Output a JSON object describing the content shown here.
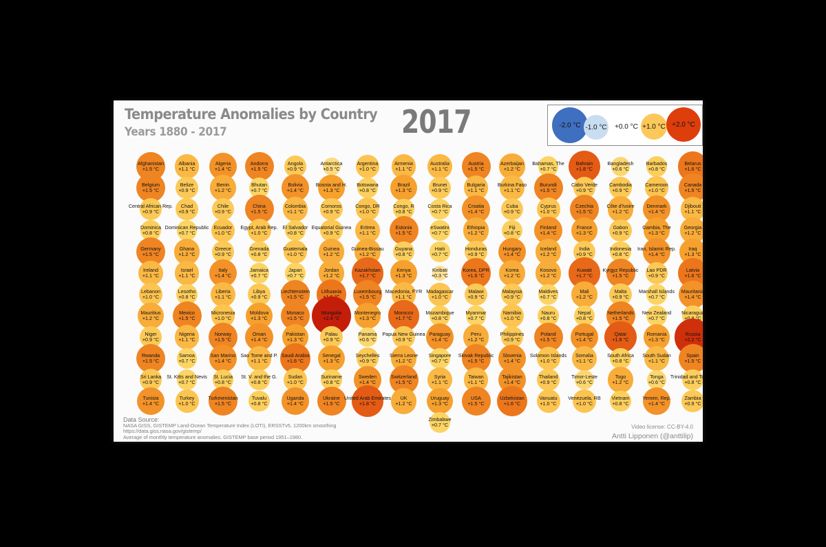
{
  "title": "Temperature Anomalies by Country",
  "subtitle": "Years 1880 - 2017",
  "year": "2017",
  "legend": [
    {
      "label": "-2.0 °C",
      "value": -2.0
    },
    {
      "label": "-1.0 °C",
      "value": -1.0
    },
    {
      "label": "+0.0 °C",
      "value": 0.0
    },
    {
      "label": "+1.0 °C",
      "value": 1.0
    },
    {
      "label": "+2.0 °C",
      "value": 2.0
    }
  ],
  "source": {
    "heading": "Data Source:",
    "line1": "NASA GISS, GISTEMP Land-Ocean Temperature Index (LOTI), ERSSTv5, 1200km smoothing",
    "line2": "https://data.giss.nasa.gov/gistemp/",
    "line3": "Average of monthly temperature anomalies. GISTEMP base period 1951–1980."
  },
  "license": "Video license: CC-BY-4.0",
  "author": "Antti Lipponen (@anttilip)",
  "chart_data": {
    "type": "bubble-grid",
    "title": "Temperature Anomalies by Country",
    "year": 2017,
    "unit": "°C",
    "columns": 16,
    "countries": [
      {
        "name": "Afghanistan",
        "value": 1.5,
        "label": "+1.5 °C"
      },
      {
        "name": "Albania",
        "value": 1.1,
        "label": "+1.1 °C"
      },
      {
        "name": "Algeria",
        "value": 1.4,
        "label": "+1.4 °C"
      },
      {
        "name": "Andorra",
        "value": 1.5,
        "label": "+1.5 °C"
      },
      {
        "name": "Angola",
        "value": 0.9,
        "label": "+0.9 °C"
      },
      {
        "name": "Antarctica",
        "value": 0.5,
        "label": "+0.5 °C"
      },
      {
        "name": "Argentina",
        "value": 1.0,
        "label": "+1.0 °C"
      },
      {
        "name": "Armenia",
        "value": 1.1,
        "label": "+1.1 °C"
      },
      {
        "name": "Australia",
        "value": 1.1,
        "label": "+1.1 °C"
      },
      {
        "name": "Austria",
        "value": 1.5,
        "label": "+1.5 °C"
      },
      {
        "name": "Azerbaijan",
        "value": 1.2,
        "label": "+1.2 °C"
      },
      {
        "name": "Bahamas, The",
        "value": 0.7,
        "label": "+0.7 °C"
      },
      {
        "name": "Bahrain",
        "value": 1.8,
        "label": "+1.8 °C"
      },
      {
        "name": "Bangladesh",
        "value": 0.6,
        "label": "+0.6 °C"
      },
      {
        "name": "Barbados",
        "value": 0.8,
        "label": "+0.8 °C"
      },
      {
        "name": "Belarus",
        "value": 1.6,
        "label": "+1.6 °C"
      },
      {
        "name": "Belgium",
        "value": 1.5,
        "label": "+1.5 °C"
      },
      {
        "name": "Belize",
        "value": 0.9,
        "label": "+0.9 °C"
      },
      {
        "name": "Benin",
        "value": 1.2,
        "label": "+1.2 °C"
      },
      {
        "name": "Bhutan",
        "value": 0.7,
        "label": "+0.7 °C"
      },
      {
        "name": "Bolivia",
        "value": 1.4,
        "label": "+1.4 °C"
      },
      {
        "name": "Bosnia and H.",
        "value": 1.3,
        "label": "+1.3 °C"
      },
      {
        "name": "Botswana",
        "value": 0.8,
        "label": "+0.8 °C"
      },
      {
        "name": "Brazil",
        "value": 1.3,
        "label": "+1.3 °C"
      },
      {
        "name": "Brunei",
        "value": 0.9,
        "label": "+0.9 °C"
      },
      {
        "name": "Bulgaria",
        "value": 1.1,
        "label": "+1.1 °C"
      },
      {
        "name": "Burkina Faso",
        "value": 1.1,
        "label": "+1.1 °C"
      },
      {
        "name": "Burundi",
        "value": 1.5,
        "label": "+1.5 °C"
      },
      {
        "name": "Cabo Verde",
        "value": 0.9,
        "label": "+0.9 °C"
      },
      {
        "name": "Cambodia",
        "value": 0.9,
        "label": "+0.9 °C"
      },
      {
        "name": "Cameroon",
        "value": 1.0,
        "label": "+1.0 °C"
      },
      {
        "name": "Canada",
        "value": 1.5,
        "label": "+1.5 °C"
      },
      {
        "name": "Central African Rep.",
        "value": 0.9,
        "label": "+0.9 °C"
      },
      {
        "name": "Chad",
        "value": 0.9,
        "label": "+0.9 °C"
      },
      {
        "name": "Chile",
        "value": 0.9,
        "label": "+0.9 °C"
      },
      {
        "name": "China",
        "value": 1.5,
        "label": "+1.5 °C"
      },
      {
        "name": "Colombia",
        "value": 1.1,
        "label": "+1.1 °C"
      },
      {
        "name": "Comoros",
        "value": 0.9,
        "label": "+0.9 °C"
      },
      {
        "name": "Congo, DR",
        "value": 1.0,
        "label": "+1.0 °C"
      },
      {
        "name": "Congo, R",
        "value": 0.8,
        "label": "+0.8 °C"
      },
      {
        "name": "Costa Rica",
        "value": 0.7,
        "label": "+0.7 °C"
      },
      {
        "name": "Croatia",
        "value": 1.4,
        "label": "+1.4 °C"
      },
      {
        "name": "Cuba",
        "value": 0.9,
        "label": "+0.9 °C"
      },
      {
        "name": "Cyprus",
        "value": 1.0,
        "label": "+1.0 °C"
      },
      {
        "name": "Czechia",
        "value": 1.5,
        "label": "+1.5 °C"
      },
      {
        "name": "Côte d'Ivoire",
        "value": 1.2,
        "label": "+1.2 °C"
      },
      {
        "name": "Denmark",
        "value": 1.4,
        "label": "+1.4 °C"
      },
      {
        "name": "Djibouti",
        "value": 1.1,
        "label": "+1.1 °C"
      },
      {
        "name": "Dominica",
        "value": 0.8,
        "label": "+0.8 °C"
      },
      {
        "name": "Dominican Republic",
        "value": 0.7,
        "label": "+0.7 °C"
      },
      {
        "name": "Ecuador",
        "value": 1.0,
        "label": "+1.0 °C"
      },
      {
        "name": "Egypt, Arab Rep.",
        "value": 1.0,
        "label": "+1.0 °C"
      },
      {
        "name": "El Salvador",
        "value": 0.8,
        "label": "+0.8 °C"
      },
      {
        "name": "Equatorial Guinea",
        "value": 0.9,
        "label": "+0.9 °C"
      },
      {
        "name": "Eritrea",
        "value": 1.1,
        "label": "+1.1 °C"
      },
      {
        "name": "Estonia",
        "value": 1.5,
        "label": "+1.5 °C"
      },
      {
        "name": "eSwatini",
        "value": 0.7,
        "label": "+0.7 °C"
      },
      {
        "name": "Ethiopia",
        "value": 1.2,
        "label": "+1.2 °C"
      },
      {
        "name": "Fiji",
        "value": 0.8,
        "label": "+0.8 °C"
      },
      {
        "name": "Finland",
        "value": 1.4,
        "label": "+1.4 °C"
      },
      {
        "name": "France",
        "value": 1.3,
        "label": "+1.3 °C"
      },
      {
        "name": "Gabon",
        "value": 0.9,
        "label": "+0.9 °C"
      },
      {
        "name": "Gambia, The",
        "value": 1.3,
        "label": "+1.3 °C"
      },
      {
        "name": "Georgia",
        "value": 1.2,
        "label": "+1.2 °C"
      },
      {
        "name": "Germany",
        "value": 1.5,
        "label": "+1.5 °C"
      },
      {
        "name": "Ghana",
        "value": 1.2,
        "label": "+1.2 °C"
      },
      {
        "name": "Greece",
        "value": 0.9,
        "label": "+0.9 °C"
      },
      {
        "name": "Grenada",
        "value": 0.8,
        "label": "+0.8 °C"
      },
      {
        "name": "Guatemala",
        "value": 1.0,
        "label": "+1.0 °C"
      },
      {
        "name": "Guinea",
        "value": 1.2,
        "label": "+1.2 °C"
      },
      {
        "name": "Guinea-Bissau",
        "value": 1.2,
        "label": "+1.2 °C"
      },
      {
        "name": "Guyana",
        "value": 0.8,
        "label": "+0.8 °C"
      },
      {
        "name": "Haiti",
        "value": 0.7,
        "label": "+0.7 °C"
      },
      {
        "name": "Honduras",
        "value": 0.9,
        "label": "+0.9 °C"
      },
      {
        "name": "Hungary",
        "value": 1.4,
        "label": "+1.4 °C"
      },
      {
        "name": "Iceland",
        "value": 1.2,
        "label": "+1.2 °C"
      },
      {
        "name": "India",
        "value": 0.9,
        "label": "+0.9 °C"
      },
      {
        "name": "Indonesia",
        "value": 0.8,
        "label": "+0.8 °C"
      },
      {
        "name": "Iran, Islamic Rep.",
        "value": 1.4,
        "label": "+1.4 °C"
      },
      {
        "name": "Iraq",
        "value": 1.3,
        "label": "+1.3 °C"
      },
      {
        "name": "Ireland",
        "value": 1.1,
        "label": "+1.1 °C"
      },
      {
        "name": "Israel",
        "value": 1.1,
        "label": "+1.1 °C"
      },
      {
        "name": "Italy",
        "value": 1.4,
        "label": "+1.4 °C"
      },
      {
        "name": "Jamaica",
        "value": 0.7,
        "label": "+0.7 °C"
      },
      {
        "name": "Japan",
        "value": 0.7,
        "label": "+0.7 °C"
      },
      {
        "name": "Jordan",
        "value": 1.2,
        "label": "+1.2 °C"
      },
      {
        "name": "Kazakhstan",
        "value": 1.7,
        "label": "+1.7 °C"
      },
      {
        "name": "Kenya",
        "value": 1.3,
        "label": "+1.3 °C"
      },
      {
        "name": "Kiribati",
        "value": 0.3,
        "label": "+0.3 °C"
      },
      {
        "name": "Korea, DPR",
        "value": 1.6,
        "label": "+1.6 °C"
      },
      {
        "name": "Korea",
        "value": 1.2,
        "label": "+1.2 °C"
      },
      {
        "name": "Kosovo",
        "value": 1.2,
        "label": "+1.2 °C"
      },
      {
        "name": "Kuwait",
        "value": 1.7,
        "label": "+1.7 °C"
      },
      {
        "name": "Kyrgyz Republic",
        "value": 1.5,
        "label": "+1.5 °C"
      },
      {
        "name": "Lao PDR",
        "value": 0.9,
        "label": "+0.9 °C"
      },
      {
        "name": "Latvia",
        "value": 1.6,
        "label": "+1.6 °C"
      },
      {
        "name": "Lebanon",
        "value": 1.0,
        "label": "+1.0 °C"
      },
      {
        "name": "Lesotho",
        "value": 0.8,
        "label": "+0.8 °C"
      },
      {
        "name": "Liberia",
        "value": 1.1,
        "label": "+1.1 °C"
      },
      {
        "name": "Libya",
        "value": 0.9,
        "label": "+0.9 °C"
      },
      {
        "name": "Liechtenstein",
        "value": 1.5,
        "label": "+1.5 °C"
      },
      {
        "name": "Lithuania",
        "value": 1.6,
        "label": "+1.6 °C"
      },
      {
        "name": "Luxembourg",
        "value": 1.5,
        "label": "+1.5 °C"
      },
      {
        "name": "Macedonia, FYR",
        "value": 1.1,
        "label": "+1.1 °C"
      },
      {
        "name": "Madagascar",
        "value": 1.0,
        "label": "+1.0 °C"
      },
      {
        "name": "Malawi",
        "value": 0.9,
        "label": "+0.9 °C"
      },
      {
        "name": "Malaysia",
        "value": 0.9,
        "label": "+0.9 °C"
      },
      {
        "name": "Maldives",
        "value": 0.7,
        "label": "+0.7 °C"
      },
      {
        "name": "Mali",
        "value": 1.2,
        "label": "+1.2 °C"
      },
      {
        "name": "Malta",
        "value": 0.9,
        "label": "+0.9 °C"
      },
      {
        "name": "Marshall Islands",
        "value": 0.7,
        "label": "+0.7 °C"
      },
      {
        "name": "Mauritania",
        "value": 1.4,
        "label": "+1.4 °C"
      },
      {
        "name": "Mauritius",
        "value": 1.2,
        "label": "+1.2 °C"
      },
      {
        "name": "Mexico",
        "value": 1.5,
        "label": "+1.5 °C"
      },
      {
        "name": "Micronesia",
        "value": 1.0,
        "label": "+1.0 °C"
      },
      {
        "name": "Moldova",
        "value": 1.3,
        "label": "+1.3 °C"
      },
      {
        "name": "Monaco",
        "value": 1.5,
        "label": "+1.5 °C"
      },
      {
        "name": "Mongolia",
        "value": 2.4,
        "label": "+2.4 °C"
      },
      {
        "name": "Montenegro",
        "value": 1.3,
        "label": "+1.3 °C"
      },
      {
        "name": "Morocco",
        "value": 1.7,
        "label": "+1.7 °C"
      },
      {
        "name": "Mozambique",
        "value": 0.8,
        "label": "+0.8 °C"
      },
      {
        "name": "Myanmar",
        "value": 0.7,
        "label": "+0.7 °C"
      },
      {
        "name": "Namibia",
        "value": 1.0,
        "label": "+1.0 °C"
      },
      {
        "name": "Nauru",
        "value": 0.8,
        "label": "+0.8 °C"
      },
      {
        "name": "Nepal",
        "value": 0.8,
        "label": "+0.8 °C"
      },
      {
        "name": "Netherlands",
        "value": 1.5,
        "label": "+1.5 °C"
      },
      {
        "name": "New Zealand",
        "value": 0.7,
        "label": "+0.7 °C"
      },
      {
        "name": "Nicaragua",
        "value": 0.8,
        "label": "+0.8 °C"
      },
      {
        "name": "Niger",
        "value": 0.9,
        "label": "+0.9 °C"
      },
      {
        "name": "Nigeria",
        "value": 1.1,
        "label": "+1.1 °C"
      },
      {
        "name": "Norway",
        "value": 1.5,
        "label": "+1.5 °C"
      },
      {
        "name": "Oman",
        "value": 1.4,
        "label": "+1.4 °C"
      },
      {
        "name": "Pakistan",
        "value": 1.3,
        "label": "+1.3 °C"
      },
      {
        "name": "Palau",
        "value": 0.9,
        "label": "+0.9 °C"
      },
      {
        "name": "Panama",
        "value": 0.6,
        "label": "+0.6 °C"
      },
      {
        "name": "Papua New Guinea",
        "value": 0.9,
        "label": "+0.9 °C"
      },
      {
        "name": "Paraguay",
        "value": 1.4,
        "label": "+1.4 °C"
      },
      {
        "name": "Peru",
        "value": 1.2,
        "label": "+1.2 °C"
      },
      {
        "name": "Philippines",
        "value": 0.9,
        "label": "+0.9 °C"
      },
      {
        "name": "Poland",
        "value": 1.5,
        "label": "+1.5 °C"
      },
      {
        "name": "Portugal",
        "value": 1.4,
        "label": "+1.4 °C"
      },
      {
        "name": "Qatar",
        "value": 1.8,
        "label": "+1.8 °C"
      },
      {
        "name": "Romania",
        "value": 1.3,
        "label": "+1.3 °C"
      },
      {
        "name": "Russia",
        "value": 2.2,
        "label": "+2.2 °C"
      },
      {
        "name": "Rwanda",
        "value": 1.5,
        "label": "+1.5 °C"
      },
      {
        "name": "Samoa",
        "value": 0.7,
        "label": "+0.7 °C"
      },
      {
        "name": "San Marino",
        "value": 1.4,
        "label": "+1.4 °C"
      },
      {
        "name": "Sao Tome and P.",
        "value": 1.1,
        "label": "+1.1 °C"
      },
      {
        "name": "Saudi Arabia",
        "value": 1.6,
        "label": "+1.6 °C"
      },
      {
        "name": "Senegal",
        "value": 1.3,
        "label": "+1.3 °C"
      },
      {
        "name": "Seychelles",
        "value": 0.9,
        "label": "+0.9 °C"
      },
      {
        "name": "Sierra Leone",
        "value": 1.2,
        "label": "+1.2 °C"
      },
      {
        "name": "Singapore",
        "value": 0.7,
        "label": "+0.7 °C"
      },
      {
        "name": "Slovak Republic",
        "value": 1.5,
        "label": "+1.5 °C"
      },
      {
        "name": "Slovenia",
        "value": 1.4,
        "label": "+1.4 °C"
      },
      {
        "name": "Solomon Islands",
        "value": 1.0,
        "label": "+1.0 °C"
      },
      {
        "name": "Somalia",
        "value": 1.1,
        "label": "+1.1 °C"
      },
      {
        "name": "South Africa",
        "value": 0.8,
        "label": "+0.8 °C"
      },
      {
        "name": "South Sudan",
        "value": 1.1,
        "label": "+1.1 °C"
      },
      {
        "name": "Spain",
        "value": 1.5,
        "label": "+1.5 °C"
      },
      {
        "name": "Sri Lanka",
        "value": 0.9,
        "label": "+0.9 °C"
      },
      {
        "name": "St. Kitts and Nevis",
        "value": 0.7,
        "label": "+0.7 °C"
      },
      {
        "name": "St. Lucia",
        "value": 0.8,
        "label": "+0.8 °C"
      },
      {
        "name": "St. V. and the G.",
        "value": 0.8,
        "label": "+0.8 °C"
      },
      {
        "name": "Sudan",
        "value": 1.0,
        "label": "+1.0 °C"
      },
      {
        "name": "Suriname",
        "value": 0.8,
        "label": "+0.8 °C"
      },
      {
        "name": "Sweden",
        "value": 1.4,
        "label": "+1.4 °C"
      },
      {
        "name": "Switzerland",
        "value": 1.5,
        "label": "+1.5 °C"
      },
      {
        "name": "Syria",
        "value": 1.1,
        "label": "+1.1 °C"
      },
      {
        "name": "Taiwan",
        "value": 1.1,
        "label": "+1.1 °C"
      },
      {
        "name": "Tajikistan",
        "value": 1.4,
        "label": "+1.4 °C"
      },
      {
        "name": "Thailand",
        "value": 0.9,
        "label": "+0.9 °C"
      },
      {
        "name": "Timor-Leste",
        "value": 0.6,
        "label": "+0.6 °C"
      },
      {
        "name": "Togo",
        "value": 1.2,
        "label": "+1.2 °C"
      },
      {
        "name": "Tonga",
        "value": 0.6,
        "label": "+0.6 °C"
      },
      {
        "name": "Trinidad and Tobago",
        "value": 0.8,
        "label": "+0.8 °C"
      },
      {
        "name": "Tunisia",
        "value": 1.4,
        "label": "+1.4 °C"
      },
      {
        "name": "Turkey",
        "value": 1.0,
        "label": "+1.0 °C"
      },
      {
        "name": "Turkmenistan",
        "value": 1.5,
        "label": "+1.5 °C"
      },
      {
        "name": "Tuvalu",
        "value": 0.8,
        "label": "+0.8 °C"
      },
      {
        "name": "Uganda",
        "value": 1.4,
        "label": "+1.4 °C"
      },
      {
        "name": "Ukraine",
        "value": 1.5,
        "label": "+1.5 °C"
      },
      {
        "name": "United Arab Emirates",
        "value": 1.8,
        "label": "+1.8 °C"
      },
      {
        "name": "UK",
        "value": 1.2,
        "label": "+1.2 °C"
      },
      {
        "name": "Uruguay",
        "value": 1.3,
        "label": "+1.3 °C"
      },
      {
        "name": "USA",
        "value": 1.5,
        "label": "+1.5 °C"
      },
      {
        "name": "Uzbekistan",
        "value": 1.6,
        "label": "+1.6 °C"
      },
      {
        "name": "Vanuatu",
        "value": 1.0,
        "label": "+1.0 °C"
      },
      {
        "name": "Venezuela, RB",
        "value": 1.0,
        "label": "+1.0 °C"
      },
      {
        "name": "Vietnam",
        "value": 0.8,
        "label": "+0.8 °C"
      },
      {
        "name": "Yemen, Rep.",
        "value": 1.4,
        "label": "+1.4 °C"
      },
      {
        "name": "Zambia",
        "value": 0.9,
        "label": "+0.9 °C"
      },
      {
        "name": "Zimbabwe",
        "value": 0.7,
        "label": "+0.7 °C"
      }
    ]
  }
}
